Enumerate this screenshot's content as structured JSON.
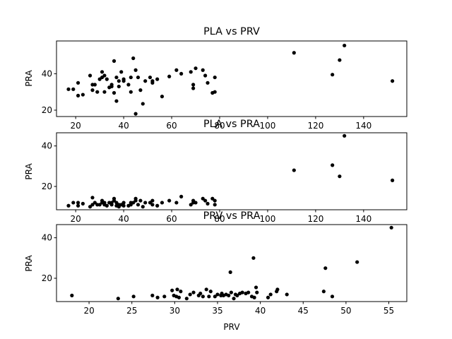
{
  "chart_data": [
    {
      "type": "scatter",
      "title": "PLA vs PRV",
      "xlabel": "",
      "ylabel": "PRA",
      "xlim": [
        12,
        158
      ],
      "ylim": [
        16.5,
        58
      ],
      "xticks": [
        20,
        40,
        60,
        80,
        100,
        120,
        140
      ],
      "yticks": [
        20,
        40
      ],
      "grid": false,
      "marker_color": "#000000",
      "points": [
        [
          17,
          31.5
        ],
        [
          19,
          31.5
        ],
        [
          21,
          28
        ],
        [
          21,
          35
        ],
        [
          23,
          28.5
        ],
        [
          26,
          39
        ],
        [
          27,
          31
        ],
        [
          27,
          34
        ],
        [
          28,
          34
        ],
        [
          29,
          30
        ],
        [
          30,
          37
        ],
        [
          31,
          41
        ],
        [
          31,
          38
        ],
        [
          32,
          39
        ],
        [
          32,
          30
        ],
        [
          33,
          37
        ],
        [
          34,
          32.5
        ],
        [
          35,
          33
        ],
        [
          35,
          34
        ],
        [
          36,
          29.5
        ],
        [
          36,
          47
        ],
        [
          37,
          38
        ],
        [
          37,
          25
        ],
        [
          38,
          33
        ],
        [
          38,
          36
        ],
        [
          39,
          41
        ],
        [
          40,
          37
        ],
        [
          40,
          36
        ],
        [
          42,
          34
        ],
        [
          43,
          30
        ],
        [
          43,
          38
        ],
        [
          44,
          48.5
        ],
        [
          45,
          42
        ],
        [
          45,
          18
        ],
        [
          46,
          38
        ],
        [
          47,
          31
        ],
        [
          48,
          23.5
        ],
        [
          49,
          36
        ],
        [
          51,
          38
        ],
        [
          52,
          36
        ],
        [
          52,
          35
        ],
        [
          54,
          37
        ],
        [
          56,
          27.5
        ],
        [
          59,
          38.5
        ],
        [
          62,
          42
        ],
        [
          64,
          40
        ],
        [
          68,
          41
        ],
        [
          69,
          32
        ],
        [
          69,
          34
        ],
        [
          70,
          43
        ],
        [
          73,
          42
        ],
        [
          74,
          39
        ],
        [
          75,
          35
        ],
        [
          77,
          29.5
        ],
        [
          78,
          38
        ],
        [
          78,
          30
        ],
        [
          111,
          51.5
        ],
        [
          127,
          39.5
        ],
        [
          130,
          47.5
        ],
        [
          132,
          55.5
        ],
        [
          152,
          36
        ]
      ]
    },
    {
      "type": "scatter",
      "title": "PLA vs PRA",
      "xlabel": "",
      "ylabel": "PRA",
      "xlim": [
        12,
        158
      ],
      "ylim": [
        8.5,
        46.5
      ],
      "xticks": [
        20,
        40,
        60,
        80,
        100,
        120,
        140
      ],
      "yticks": [
        20,
        40
      ],
      "grid": false,
      "marker_color": "#000000",
      "points": [
        [
          17,
          10.5
        ],
        [
          19,
          12
        ],
        [
          21,
          10.5
        ],
        [
          21,
          12
        ],
        [
          23,
          11.5
        ],
        [
          26,
          10
        ],
        [
          27,
          14.5
        ],
        [
          27,
          11
        ],
        [
          28,
          12
        ],
        [
          29,
          11
        ],
        [
          30,
          11
        ],
        [
          31,
          12
        ],
        [
          31,
          13
        ],
        [
          32,
          12
        ],
        [
          32,
          11
        ],
        [
          33,
          10.5
        ],
        [
          34,
          12
        ],
        [
          35,
          12
        ],
        [
          35,
          11
        ],
        [
          36,
          13
        ],
        [
          36,
          14
        ],
        [
          37,
          12
        ],
        [
          37,
          10.5
        ],
        [
          38,
          11
        ],
        [
          38,
          10
        ],
        [
          39,
          11
        ],
        [
          40,
          10.5
        ],
        [
          40,
          12
        ],
        [
          42,
          10.5
        ],
        [
          43,
          12
        ],
        [
          43,
          11
        ],
        [
          44,
          12
        ],
        [
          45,
          13
        ],
        [
          45,
          14
        ],
        [
          46,
          11
        ],
        [
          47,
          13
        ],
        [
          48,
          10
        ],
        [
          49,
          12
        ],
        [
          51,
          12
        ],
        [
          52,
          11
        ],
        [
          52,
          13
        ],
        [
          54,
          10.5
        ],
        [
          56,
          12
        ],
        [
          59,
          13
        ],
        [
          62,
          12
        ],
        [
          64,
          15
        ],
        [
          68,
          11
        ],
        [
          69,
          12
        ],
        [
          69,
          13
        ],
        [
          70,
          12
        ],
        [
          73,
          14
        ],
        [
          74,
          13
        ],
        [
          75,
          11.5
        ],
        [
          77,
          14
        ],
        [
          78,
          13
        ],
        [
          78,
          11
        ],
        [
          111,
          28
        ],
        [
          127,
          30.5
        ],
        [
          130,
          25
        ],
        [
          132,
          45
        ],
        [
          152,
          23
        ]
      ]
    },
    {
      "type": "scatter",
      "title": "PRV vs PRA",
      "xlabel": "PRV",
      "ylabel": "PRA",
      "xlim": [
        16.2,
        57.1
      ],
      "ylim": [
        8.5,
        46.5
      ],
      "xticks": [
        20,
        25,
        30,
        35,
        40,
        45,
        50,
        55
      ],
      "yticks": [
        20,
        40
      ],
      "grid": false,
      "marker_color": "#000000",
      "points": [
        [
          18,
          11.5
        ],
        [
          23.4,
          10
        ],
        [
          25.2,
          11
        ],
        [
          27.4,
          11.5
        ],
        [
          28,
          10.5
        ],
        [
          28.8,
          11
        ],
        [
          29.7,
          14
        ],
        [
          29.9,
          11.5
        ],
        [
          30.2,
          11
        ],
        [
          30.3,
          14.5
        ],
        [
          30.5,
          10.5
        ],
        [
          30.7,
          13.5
        ],
        [
          31.4,
          10
        ],
        [
          31.8,
          12
        ],
        [
          32.2,
          13
        ],
        [
          32.8,
          11.5
        ],
        [
          33,
          12.5
        ],
        [
          33.3,
          11
        ],
        [
          33.7,
          14.5
        ],
        [
          34,
          11
        ],
        [
          34.2,
          13.5
        ],
        [
          34.7,
          11
        ],
        [
          35,
          12
        ],
        [
          35.4,
          11.5
        ],
        [
          35.5,
          12.5
        ],
        [
          35.7,
          11.5
        ],
        [
          36,
          12
        ],
        [
          36.3,
          11.5
        ],
        [
          36.5,
          23
        ],
        [
          36.6,
          13
        ],
        [
          36.9,
          10
        ],
        [
          37.1,
          12
        ],
        [
          37.3,
          11.5
        ],
        [
          37.6,
          12.5
        ],
        [
          37.9,
          13
        ],
        [
          38.3,
          12.5
        ],
        [
          38.6,
          13
        ],
        [
          39.2,
          30
        ],
        [
          39.3,
          10.5
        ],
        [
          39.5,
          15.5
        ],
        [
          39.6,
          13
        ],
        [
          40.9,
          10.5
        ],
        [
          41.2,
          12
        ],
        [
          41.9,
          13.5
        ],
        [
          42,
          14.5
        ],
        [
          43.1,
          12
        ],
        [
          47.4,
          13.5
        ],
        [
          47.6,
          25
        ],
        [
          48.4,
          11
        ],
        [
          51.3,
          28
        ],
        [
          55.3,
          45
        ],
        [
          39,
          11
        ]
      ]
    }
  ]
}
